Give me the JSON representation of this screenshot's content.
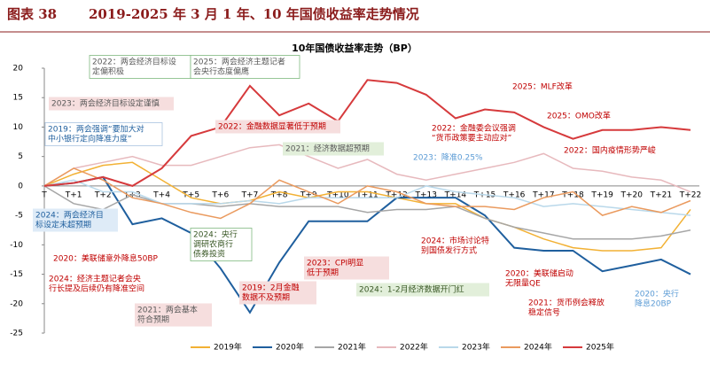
{
  "header": {
    "label": "图表 38",
    "title": "2019-2025 年 3 月 1 年、10 年国债收益率走势情况"
  },
  "chart_data": {
    "type": "line",
    "title": "10年国债收益率走势（BP）",
    "categories": [
      "T",
      "T+1",
      "T+2",
      "T+3",
      "T+4",
      "T+5",
      "T+6",
      "T+7",
      "T+8",
      "T+9",
      "T+10",
      "T+11",
      "T+12",
      "T+13",
      "T+14",
      "T+15",
      "T+16",
      "T+17",
      "T+18",
      "T+19",
      "T+20",
      "T+21",
      "T+22"
    ],
    "ylim": [
      -25,
      20
    ],
    "yticks": [
      -25,
      -20,
      -15,
      -10,
      -5,
      0,
      5,
      10,
      15,
      20
    ],
    "series": [
      {
        "name": "2019年",
        "color": "#f2b134",
        "values": [
          0,
          2,
          3.5,
          4,
          1,
          -2,
          -3,
          -2.5,
          -1,
          -2,
          -1,
          -1,
          -2,
          -3,
          -3,
          -5.5,
          -7,
          -9,
          -10.5,
          -11,
          -11,
          -10.5,
          -4
        ]
      },
      {
        "name": "2020年",
        "color": "#1f5f9e",
        "values": [
          0,
          0.5,
          1.5,
          -6.5,
          -5.5,
          -8,
          -14,
          -21.5,
          -13,
          -6,
          -6,
          -6,
          -2,
          -2,
          -2,
          -5,
          -10.5,
          -11,
          -11,
          -14.5,
          -13.5,
          -12.5,
          -15
        ]
      },
      {
        "name": "2021年",
        "color": "#a6a6a6",
        "values": [
          0,
          -3,
          -4,
          -1.5,
          -3,
          -3,
          -3.5,
          -3,
          -3.5,
          -3.5,
          -3.5,
          -4.5,
          -4,
          -4,
          -3.5,
          -5.5,
          -7,
          -8,
          -9,
          -9,
          -9,
          -8.5,
          -7.5
        ]
      },
      {
        "name": "2022年",
        "color": "#e7b9bd",
        "values": [
          0,
          3,
          4,
          5,
          3.5,
          3.5,
          5,
          6.5,
          7,
          5,
          3,
          4.5,
          2,
          1,
          2,
          3,
          4,
          5.5,
          3,
          2.5,
          1.5,
          1,
          -1
        ]
      },
      {
        "name": "2023年",
        "color": "#b9d8ea",
        "values": [
          0,
          1,
          -1,
          -1,
          -3,
          -3,
          -3,
          -2.5,
          -3,
          -2,
          -2,
          -2,
          -2,
          0,
          -1,
          -1.5,
          -2,
          -3.5,
          -3,
          -3.5,
          -4,
          -4.5,
          -5
        ]
      },
      {
        "name": "2024年",
        "color": "#ea9a5e",
        "values": [
          0,
          3,
          1,
          -2,
          -3,
          -4.5,
          -5.5,
          -3,
          1,
          -1,
          -3,
          0,
          -1,
          -3,
          -3.5,
          -3.5,
          -4,
          -2,
          -1,
          -5,
          -3.5,
          -4.5,
          -2.5
        ]
      },
      {
        "name": "2025年",
        "color": "#d63a3c",
        "values": [
          0,
          0.5,
          1.5,
          0,
          3,
          8.5,
          10,
          17,
          12,
          14,
          11,
          18,
          17.5,
          15.5,
          11.5,
          13,
          12.5,
          10,
          8,
          9.5,
          9.5,
          10,
          9.5
        ]
      }
    ],
    "annotations": [
      {
        "lines": [
          "2022：两会经济目标设",
          "定偏积极"
        ],
        "color": "#595959"
      },
      {
        "lines": [
          "2025：两会经济主题记者",
          "会央行态度偏鹰"
        ],
        "color": "#595959"
      },
      {
        "lines": [
          "2023：两会经济目标设定谨慎"
        ],
        "color": "#595959"
      },
      {
        "lines": [
          "2019：两会强调“要加大对",
          "中小银行定向降准力度”"
        ],
        "color": "#1f5f9e"
      },
      {
        "lines": [
          "2022：金融数据显著低于预期"
        ],
        "color": "#c00000"
      },
      {
        "lines": [
          "2021：经济数据超预期"
        ],
        "color": "#595959"
      },
      {
        "lines": [
          "2025：MLF改革"
        ],
        "color": "#c00000"
      },
      {
        "lines": [
          "2022：金融委会议强调",
          "“货币政策要主动应对”"
        ],
        "color": "#c00000"
      },
      {
        "lines": [
          "2023：降准0.25%"
        ],
        "color": "#5b9bd5"
      },
      {
        "lines": [
          "2025：OMO改革"
        ],
        "color": "#c00000"
      },
      {
        "lines": [
          "2022：国内疫情形势严峻"
        ],
        "color": "#c00000"
      },
      {
        "lines": [
          "2024：两会经济目",
          "标设定未超预期"
        ],
        "color": "#1f5f9e"
      },
      {
        "lines": [
          "2024：央行",
          "调研农商行",
          "债券投资"
        ],
        "color": "#375623"
      },
      {
        "lines": [
          "2020：美联储意外降息50BP"
        ],
        "color": "#c00000"
      },
      {
        "lines": [
          "2024：经济主题记者会央",
          "行长提及后续仍有降准空间"
        ],
        "color": "#c00000"
      },
      {
        "lines": [
          "2023：CPI明显",
          "低于预期"
        ],
        "color": "#c00000"
      },
      {
        "lines": [
          "2019：2月金融",
          "数据不及预期"
        ],
        "color": "#c00000"
      },
      {
        "lines": [
          "2024：市场讨论特",
          "别国债发行方式"
        ],
        "color": "#c00000"
      },
      {
        "lines": [
          "2020：美联储启动",
          "无限量QE"
        ],
        "color": "#c00000"
      },
      {
        "lines": [
          "2024：1-2月经济数据开门红"
        ],
        "color": "#375623"
      },
      {
        "lines": [
          "2021：两会基本",
          "符合预期"
        ],
        "color": "#595959"
      },
      {
        "lines": [
          "2021：货币例会释放",
          "稳定信号"
        ],
        "color": "#c00000"
      },
      {
        "lines": [
          "2020：央行",
          "降息20BP"
        ],
        "color": "#5b9bd5"
      }
    ]
  }
}
